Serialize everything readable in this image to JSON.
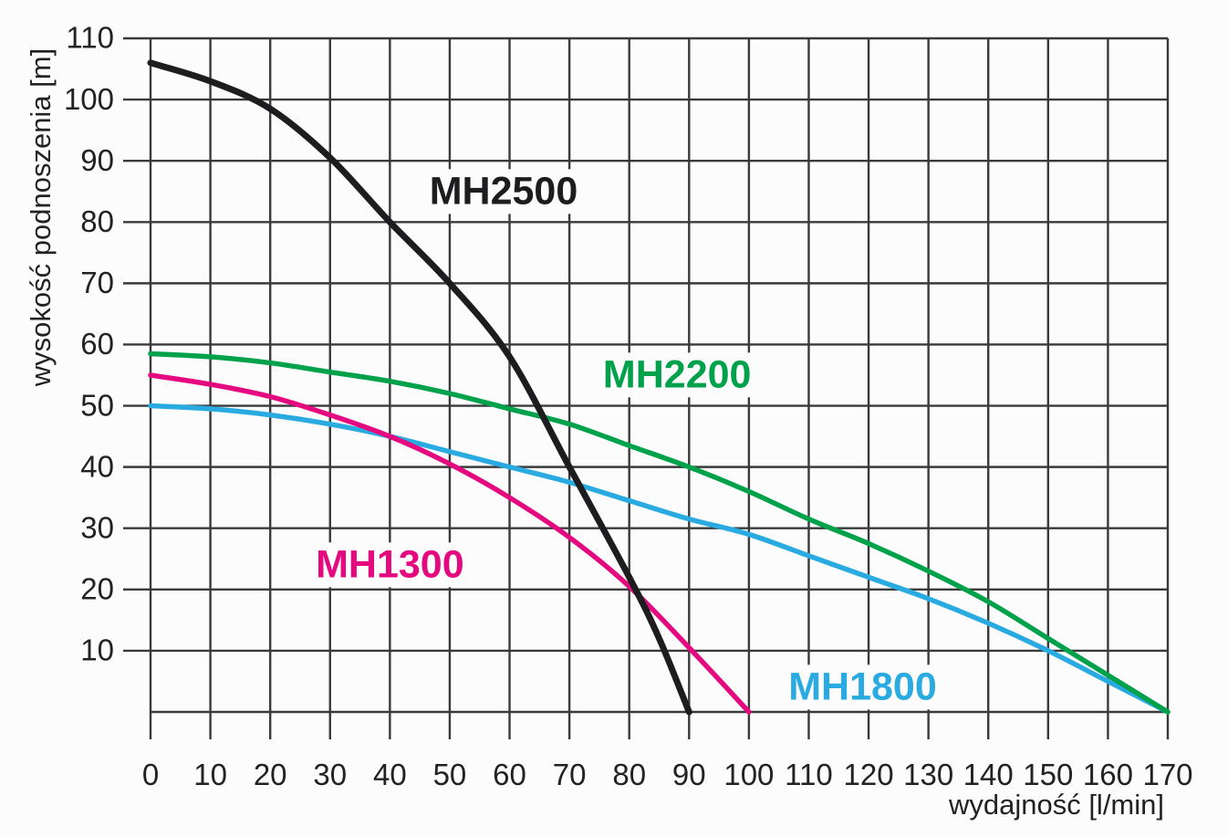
{
  "chart_data": {
    "type": "line",
    "title": "",
    "xlabel": "wydajność [l/min]",
    "ylabel": "wysokość podnoszenia [m]",
    "xlim": [
      0,
      170
    ],
    "ylim": [
      0,
      110
    ],
    "grid": true,
    "grid_color": "#3a3a3a",
    "legend_position": "inline-curve-labels",
    "x_ticks": [
      0,
      10,
      20,
      30,
      40,
      50,
      60,
      70,
      80,
      90,
      100,
      110,
      120,
      130,
      140,
      150,
      160,
      170
    ],
    "y_ticks": [
      10,
      20,
      30,
      40,
      50,
      60,
      70,
      80,
      90,
      100,
      110
    ],
    "series": [
      {
        "name": "MH1800",
        "color": "#29ABE2",
        "stroke_width": 5.5,
        "label_at": {
          "x": 119,
          "y": 4
        },
        "points": [
          [
            0,
            50
          ],
          [
            10,
            49.5
          ],
          [
            20,
            48.5
          ],
          [
            30,
            47
          ],
          [
            40,
            45
          ],
          [
            50,
            42.5
          ],
          [
            60,
            40
          ],
          [
            70,
            37.5
          ],
          [
            80,
            34.5
          ],
          [
            90,
            31.5
          ],
          [
            100,
            29
          ],
          [
            110,
            25.5
          ],
          [
            120,
            22
          ],
          [
            130,
            18.5
          ],
          [
            140,
            14.5
          ],
          [
            150,
            10
          ],
          [
            160,
            5
          ],
          [
            170,
            0
          ]
        ]
      },
      {
        "name": "MH1300",
        "color": "#E5097F",
        "stroke_width": 5.5,
        "label_at": {
          "x": 40,
          "y": 24
        },
        "points": [
          [
            0,
            55
          ],
          [
            10,
            53.5
          ],
          [
            20,
            51.5
          ],
          [
            30,
            48.5
          ],
          [
            40,
            45
          ],
          [
            50,
            40.5
          ],
          [
            60,
            35
          ],
          [
            70,
            28.5
          ],
          [
            80,
            20.5
          ],
          [
            90,
            10.5
          ],
          [
            100,
            0
          ]
        ]
      },
      {
        "name": "MH2200",
        "color": "#00A14B",
        "stroke_width": 5.5,
        "label_at": {
          "x": 88,
          "y": 55
        },
        "points": [
          [
            0,
            58.5
          ],
          [
            10,
            58
          ],
          [
            20,
            57
          ],
          [
            30,
            55.5
          ],
          [
            40,
            54
          ],
          [
            50,
            52
          ],
          [
            60,
            49.5
          ],
          [
            70,
            47
          ],
          [
            80,
            43.5
          ],
          [
            90,
            40
          ],
          [
            100,
            36
          ],
          [
            110,
            31.5
          ],
          [
            120,
            27.5
          ],
          [
            130,
            23
          ],
          [
            140,
            18
          ],
          [
            150,
            12
          ],
          [
            160,
            6
          ],
          [
            170,
            0
          ]
        ]
      },
      {
        "name": "MH2500",
        "color": "#1d1d20",
        "stroke_width": 7,
        "label_at": {
          "x": 59,
          "y": 85
        },
        "points": [
          [
            0,
            106
          ],
          [
            10,
            103
          ],
          [
            20,
            98.5
          ],
          [
            30,
            90.5
          ],
          [
            40,
            80
          ],
          [
            50,
            70
          ],
          [
            60,
            58
          ],
          [
            70,
            40
          ],
          [
            80,
            22
          ],
          [
            85,
            12
          ],
          [
            90,
            0
          ]
        ]
      }
    ]
  }
}
